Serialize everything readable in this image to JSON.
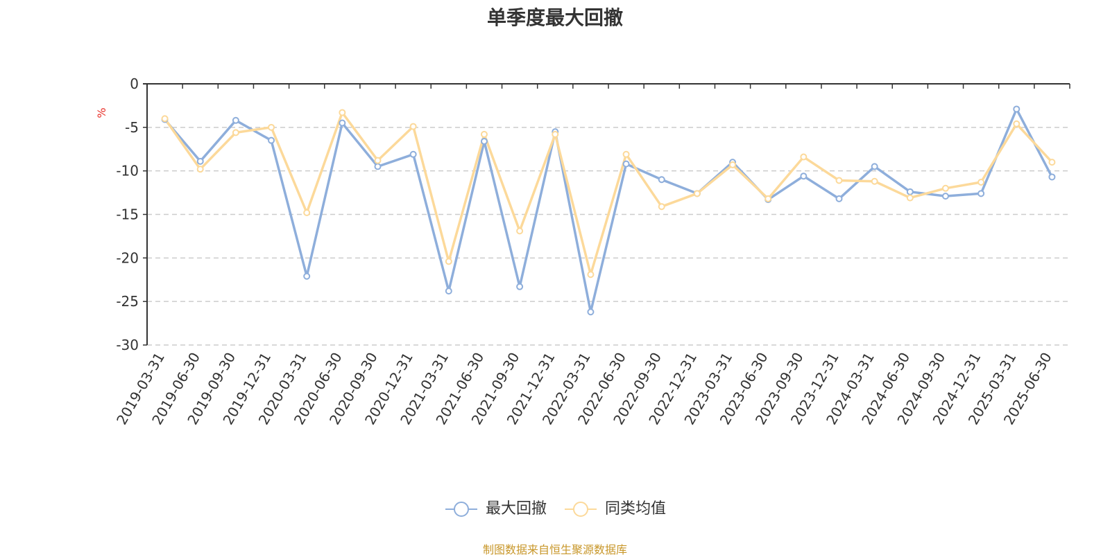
{
  "chart_data": {
    "type": "line",
    "title": "单季度最大回撤",
    "ylabel": "%",
    "xlabel": "",
    "ylim": [
      -30,
      0
    ],
    "yticks": [
      0,
      -5,
      -10,
      -15,
      -20,
      -25,
      -30
    ],
    "grid": true,
    "legend_position": "bottom",
    "categories": [
      "2019-03-31",
      "2019-06-30",
      "2019-09-30",
      "2019-12-31",
      "2020-03-31",
      "2020-06-30",
      "2020-09-30",
      "2020-12-31",
      "2021-03-31",
      "2021-06-30",
      "2021-09-30",
      "2021-12-31",
      "2022-03-31",
      "2022-06-30",
      "2022-09-30",
      "2022-12-31",
      "2023-03-31",
      "2023-06-30",
      "2023-09-30",
      "2023-12-31",
      "2024-03-31",
      "2024-06-30",
      "2024-09-30",
      "2024-12-31",
      "2025-03-31",
      "2025-06-30"
    ],
    "series": [
      {
        "name": "最大回撤",
        "color": "#8eaedb",
        "values": [
          -4.1,
          -8.9,
          -4.2,
          -6.5,
          -22.1,
          -4.5,
          -9.5,
          -8.1,
          -23.8,
          -6.6,
          -23.3,
          -5.5,
          -26.2,
          -9.2,
          -11.0,
          -12.6,
          -9.0,
          -13.3,
          -10.6,
          -13.2,
          -9.5,
          -12.4,
          -12.9,
          -12.6,
          -2.9,
          -10.7
        ]
      },
      {
        "name": "同类均值",
        "color": "#fcd99a",
        "values": [
          -4.0,
          -9.8,
          -5.6,
          -5.0,
          -14.8,
          -3.3,
          -8.8,
          -4.9,
          -20.4,
          -5.8,
          -16.9,
          -5.8,
          -21.9,
          -8.1,
          -14.1,
          -12.6,
          -9.3,
          -13.2,
          -8.4,
          -11.1,
          -11.2,
          -13.1,
          -12.0,
          -11.3,
          -4.6,
          -9.0
        ]
      }
    ]
  },
  "source_note": "制图数据来自恒生聚源数据库"
}
